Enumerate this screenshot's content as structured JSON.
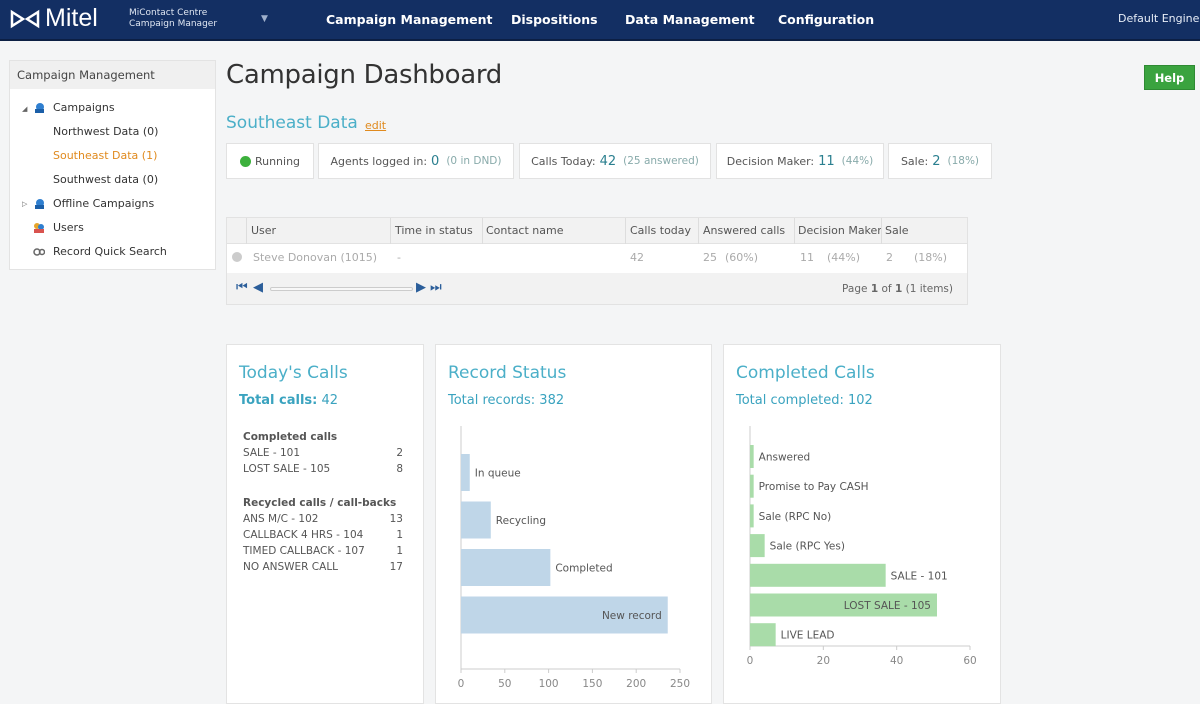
{
  "header": {
    "brand": "Mitel",
    "product_line1": "MiContact Centre",
    "product_line2": "Campaign Manager",
    "nav": [
      "Campaign Management",
      "Dispositions",
      "Data Management",
      "Configuration"
    ],
    "user": "Default Engineer"
  },
  "sidebar": {
    "title": "Campaign Management",
    "items": [
      {
        "label": "Campaigns"
      },
      {
        "label": "Northwest Data (0)"
      },
      {
        "label": "Southeast Data (1)"
      },
      {
        "label": "Southwest data (0)"
      },
      {
        "label": "Offline Campaigns"
      },
      {
        "label": "Users"
      },
      {
        "label": "Record Quick Search"
      }
    ]
  },
  "page": {
    "title": "Campaign Dashboard",
    "help": "Help",
    "campaign_name": "Southeast Data",
    "edit": "edit"
  },
  "stats": {
    "status": "Running",
    "agents_label": "Agents logged in:",
    "agents_value": "0",
    "agents_note": "(0 in DND)",
    "calls_label": "Calls Today:",
    "calls_value": "42",
    "calls_note": "(25 answered)",
    "dm_label": "Decision Maker:",
    "dm_value": "11",
    "dm_note": "(44%)",
    "sale_label": "Sale:",
    "sale_value": "2",
    "sale_note": "(18%)"
  },
  "grid": {
    "columns": [
      "User",
      "Time in status",
      "Contact name",
      "Calls today",
      "Answered calls",
      "Decision Maker",
      "Sale"
    ],
    "rows": [
      {
        "user": "Steve Donovan (1015)",
        "time": "-",
        "contact": "",
        "calls": "42",
        "answered": "25",
        "answered_pct": "(60%)",
        "dm": "11",
        "dm_pct": "(44%)",
        "sale": "2",
        "sale_pct": "(18%)"
      }
    ],
    "pager_prefix": "Page",
    "page": "1",
    "of": "of",
    "pages": "1",
    "items": "(1 items)"
  },
  "todays_calls": {
    "title": "Today's Calls",
    "total_label": "Total calls:",
    "total": "42",
    "completed_heading": "Completed calls",
    "completed": [
      {
        "label": "SALE - 101",
        "value": "2"
      },
      {
        "label": "LOST SALE - 105",
        "value": "8"
      }
    ],
    "recycled_heading": "Recycled calls / call-backs",
    "recycled": [
      {
        "label": "ANS M/C - 102",
        "value": "13"
      },
      {
        "label": "CALLBACK 4 HRS - 104",
        "value": "1"
      },
      {
        "label": "TIMED CALLBACK - 107",
        "value": "1"
      },
      {
        "label": "NO ANSWER CALL",
        "value": "17"
      }
    ]
  },
  "chart_data": [
    {
      "type": "bar",
      "title": "Record Status",
      "subtitle": "Total records: 382",
      "orientation": "horizontal",
      "categories": [
        "In queue",
        "Recycling",
        "Completed",
        "New record"
      ],
      "values": [
        10,
        34,
        102,
        236
      ],
      "xlim": [
        0,
        250
      ],
      "xticks": [
        0,
        50,
        100,
        150,
        200,
        250
      ],
      "color": "#bfd6e8"
    },
    {
      "type": "bar",
      "title": "Completed Calls",
      "subtitle": "Total completed: 102",
      "orientation": "horizontal",
      "categories": [
        "Answered",
        "Promise to Pay CASH",
        "Sale (RPC No)",
        "Sale (RPC Yes)",
        "SALE - 101",
        "LOST SALE - 105",
        "LIVE LEAD"
      ],
      "values": [
        1,
        1,
        1,
        4,
        37,
        51,
        7
      ],
      "xlim": [
        0,
        60
      ],
      "xticks": [
        0,
        20,
        40,
        60
      ],
      "color": "#a9dca9"
    }
  ]
}
